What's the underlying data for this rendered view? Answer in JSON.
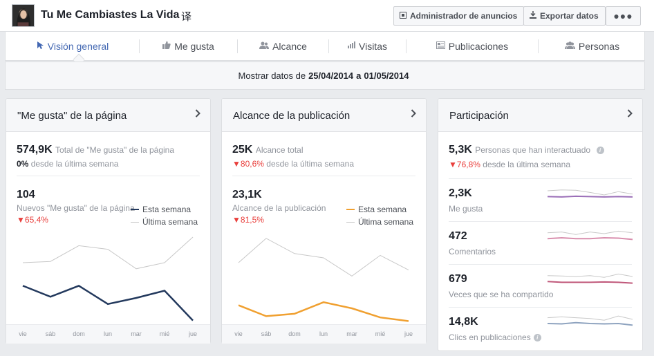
{
  "header": {
    "page_name": "Tu Me Cambiastes La Vida",
    "translate_glyph": "译",
    "ads_manager_label": "Administrador de anuncios",
    "export_label": "Exportar datos",
    "more_label": "●●●"
  },
  "tabs": [
    {
      "label": "Visión general",
      "icon": "overview-icon",
      "active": true
    },
    {
      "label": "Me gusta",
      "icon": "thumb-up-icon"
    },
    {
      "label": "Alcance",
      "icon": "people-icon"
    },
    {
      "label": "Visitas",
      "icon": "bar-chart-icon"
    },
    {
      "label": "Publicaciones",
      "icon": "posts-icon"
    },
    {
      "label": "Personas",
      "icon": "group-icon"
    }
  ],
  "date_range": {
    "prefix": "Mostrar datos de",
    "start": "25/04/2014",
    "connector": "a",
    "end": "01/05/2014"
  },
  "x_days": [
    "vie",
    "sáb",
    "dom",
    "lun",
    "mar",
    "mié",
    "jue"
  ],
  "likes_card": {
    "title": "\"Me gusta\" de la página",
    "total_value": "574,9K",
    "total_label": "Total de \"Me gusta\" de la página",
    "total_change": "0%",
    "total_change_label": "desde la última semana",
    "new_value": "104",
    "new_label": "Nuevos \"Me gusta\" de la página",
    "new_change": "65,4%",
    "legend_this_week": "Esta semana",
    "legend_last_week": "Última semana"
  },
  "reach_card": {
    "title": "Alcance de la publicación",
    "total_value": "25K",
    "total_label": "Alcance total",
    "total_change": "80,6%",
    "total_change_label": "desde la última semana",
    "post_value": "23,1K",
    "post_label": "Alcance de la publicación",
    "post_change": "81,5%",
    "legend_this_week": "Esta semana",
    "legend_last_week": "Última semana"
  },
  "engagement_card": {
    "title": "Participación",
    "total_value": "5,3K",
    "total_label": "Personas que han interactuado",
    "total_change": "76,8%",
    "total_change_label": "desde la última semana",
    "metrics": [
      {
        "value": "2,3K",
        "label": "Me gusta",
        "color": "#9b6fb8",
        "this_week": [
          0.6,
          0.62,
          0.58,
          0.6,
          0.62,
          0.6,
          0.62
        ],
        "last_week": [
          0.25,
          0.2,
          0.22,
          0.35,
          0.5,
          0.3,
          0.45
        ]
      },
      {
        "value": "472",
        "label": "Comentarios",
        "color": "#d98fae",
        "this_week": [
          0.55,
          0.5,
          0.55,
          0.55,
          0.5,
          0.52,
          0.6
        ],
        "last_week": [
          0.2,
          0.15,
          0.3,
          0.15,
          0.25,
          0.1,
          0.2
        ]
      },
      {
        "value": "679",
        "label": "Veces que se ha compartido",
        "color": "#c0587a",
        "this_week": [
          0.55,
          0.6,
          0.6,
          0.6,
          0.58,
          0.6,
          0.65
        ],
        "last_week": [
          0.2,
          0.22,
          0.25,
          0.2,
          0.3,
          0.1,
          0.25
        ]
      },
      {
        "value": "14,8K",
        "label": "Clics en publicaciones",
        "color": "#8ea3bf",
        "this_week": [
          0.5,
          0.52,
          0.45,
          0.5,
          0.52,
          0.5,
          0.6
        ],
        "last_week": [
          0.15,
          0.1,
          0.15,
          0.2,
          0.3,
          0.05,
          0.25
        ]
      }
    ]
  },
  "chart_data": [
    {
      "type": "line",
      "x": [
        "vie",
        "sáb",
        "dom",
        "lun",
        "mar",
        "mié",
        "jue"
      ],
      "series": [
        {
          "name": "Esta semana",
          "color": "#23395d",
          "values": [
            52,
            34,
            52,
            22,
            32,
            44,
            -5
          ]
        },
        {
          "name": "Última semana",
          "color": "#c8c8c8",
          "values": [
            90,
            92,
            118,
            112,
            80,
            90,
            132
          ]
        }
      ],
      "ylim": [
        -10,
        140
      ]
    },
    {
      "type": "line",
      "x": [
        "vie",
        "sáb",
        "dom",
        "lun",
        "mar",
        "mié",
        "jue"
      ],
      "series": [
        {
          "name": "Esta semana",
          "color": "#f0a030",
          "values": [
            30,
            12,
            16,
            35,
            25,
            10,
            4
          ]
        },
        {
          "name": "Última semana",
          "color": "#c8c8c8",
          "values": [
            100,
            140,
            115,
            108,
            78,
            112,
            88
          ]
        }
      ],
      "ylim": [
        0,
        150
      ]
    }
  ]
}
